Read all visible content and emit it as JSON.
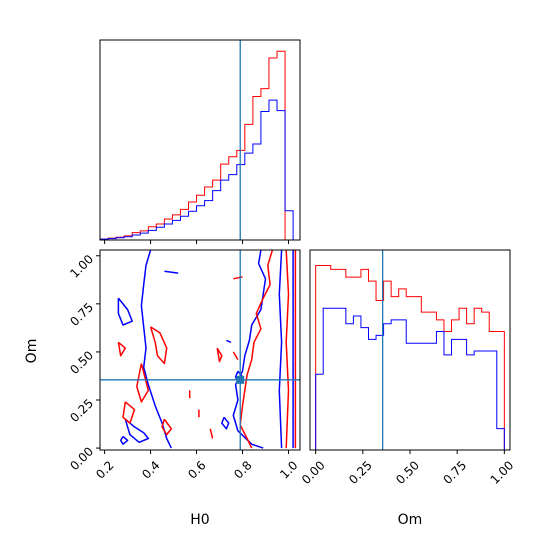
{
  "colors": {
    "blue": "#0000ff",
    "red": "#ff0000",
    "truth": "#1f77b4"
  },
  "chart_data": [
    {
      "type": "histogram",
      "name": "H0 marginal",
      "xlim": [
        0.18,
        1.05
      ],
      "bin_edges": [
        0.18,
        0.215,
        0.25,
        0.285,
        0.32,
        0.355,
        0.39,
        0.425,
        0.46,
        0.495,
        0.53,
        0.565,
        0.6,
        0.635,
        0.67,
        0.705,
        0.74,
        0.775,
        0.81,
        0.845,
        0.88,
        0.915,
        0.95,
        0.985,
        1.02
      ],
      "series": [
        {
          "color": "red",
          "values": [
            0.004,
            0.008,
            0.012,
            0.018,
            0.032,
            0.04,
            0.058,
            0.07,
            0.092,
            0.11,
            0.134,
            0.166,
            0.196,
            0.232,
            0.262,
            0.332,
            0.364,
            0.392,
            0.506,
            0.628,
            0.662,
            0.796,
            0.826,
            0.0
          ]
        },
        {
          "color": "blue",
          "values": [
            0.004,
            0.006,
            0.01,
            0.014,
            0.022,
            0.03,
            0.042,
            0.056,
            0.07,
            0.086,
            0.104,
            0.126,
            0.15,
            0.172,
            0.216,
            0.262,
            0.286,
            0.33,
            0.38,
            0.42,
            0.562,
            0.612,
            0.566,
            0.128
          ]
        }
      ],
      "truth": 0.79
    },
    {
      "type": "contour",
      "name": "H0 vs Om",
      "xlabel": "H0",
      "ylabel": "Om",
      "xlim": [
        0.18,
        1.05
      ],
      "ylim": [
        -0.01,
        1.03
      ],
      "xticks": [
        "0.2",
        "0.4",
        "0.6",
        "0.8",
        "1.0"
      ],
      "yticks": [
        "0.00",
        "0.25",
        "0.50",
        "0.75",
        "1.00"
      ],
      "truth": [
        0.79,
        0.355
      ],
      "contours": [
        {
          "color": "blue",
          "points": [
            [
              0.4,
              1.03
            ],
            [
              0.38,
              0.95
            ],
            [
              0.37,
              0.85
            ],
            [
              0.36,
              0.74
            ],
            [
              0.37,
              0.63
            ],
            [
              0.38,
              0.52
            ],
            [
              0.37,
              0.42
            ],
            [
              0.39,
              0.33
            ],
            [
              0.42,
              0.22
            ],
            [
              0.45,
              0.13
            ],
            [
              0.47,
              0.05
            ],
            [
              0.49,
              0.0
            ]
          ]
        },
        {
          "color": "blue",
          "points": [
            [
              0.88,
              1.03
            ],
            [
              0.87,
              0.96
            ],
            [
              0.9,
              0.88
            ],
            [
              0.89,
              0.8
            ],
            [
              0.88,
              0.72
            ],
            [
              0.84,
              0.64
            ],
            [
              0.83,
              0.56
            ],
            [
              0.81,
              0.48
            ],
            [
              0.8,
              0.4
            ],
            [
              0.77,
              0.33
            ],
            [
              0.78,
              0.25
            ],
            [
              0.76,
              0.17
            ],
            [
              0.78,
              0.09
            ],
            [
              0.84,
              0.02
            ],
            [
              0.89,
              0.0
            ]
          ]
        },
        {
          "color": "blue",
          "points": [
            [
              0.97,
              1.03
            ],
            [
              0.96,
              0.8
            ],
            [
              0.97,
              0.55
            ],
            [
              0.96,
              0.3
            ],
            [
              0.97,
              0.0
            ]
          ]
        },
        {
          "color": "blue",
          "points": [
            [
              1.02,
              1.03
            ],
            [
              1.02,
              0.5
            ],
            [
              1.02,
              0.0
            ]
          ]
        },
        {
          "color": "blue",
          "points": [
            [
              0.26,
              0.78
            ],
            [
              0.3,
              0.72
            ],
            [
              0.32,
              0.66
            ],
            [
              0.28,
              0.64
            ],
            [
              0.26,
              0.7
            ],
            [
              0.26,
              0.78
            ]
          ]
        },
        {
          "color": "blue",
          "points": [
            [
              0.29,
              0.15
            ],
            [
              0.33,
              0.11
            ],
            [
              0.37,
              0.08
            ],
            [
              0.39,
              0.05
            ],
            [
              0.35,
              0.03
            ],
            [
              0.31,
              0.07
            ],
            [
              0.29,
              0.15
            ]
          ]
        },
        {
          "color": "blue",
          "points": [
            [
              0.28,
              0.06
            ],
            [
              0.3,
              0.04
            ],
            [
              0.28,
              0.02
            ],
            [
              0.27,
              0.04
            ],
            [
              0.28,
              0.06
            ]
          ]
        },
        {
          "color": "blue",
          "points": [
            [
              0.46,
              0.92
            ],
            [
              0.52,
              0.91
            ]
          ]
        },
        {
          "color": "blue",
          "points": [
            [
              0.72,
              0.16
            ],
            [
              0.74,
              0.13
            ],
            [
              0.73,
              0.1
            ],
            [
              0.71,
              0.13
            ],
            [
              0.72,
              0.16
            ]
          ]
        },
        {
          "color": "blue",
          "points": [
            [
              0.78,
              0.4
            ],
            [
              0.8,
              0.37
            ],
            [
              0.78,
              0.34
            ],
            [
              0.77,
              0.37
            ],
            [
              0.78,
              0.4
            ]
          ]
        },
        {
          "color": "blue",
          "points": [
            [
              0.73,
              0.56
            ],
            [
              0.75,
              0.55
            ]
          ]
        },
        {
          "color": "red",
          "points": [
            [
              0.93,
              1.03
            ],
            [
              0.91,
              0.95
            ],
            [
              0.92,
              0.85
            ],
            [
              0.89,
              0.78
            ],
            [
              0.86,
              0.7
            ],
            [
              0.88,
              0.62
            ],
            [
              0.85,
              0.55
            ],
            [
              0.84,
              0.46
            ],
            [
              0.82,
              0.38
            ],
            [
              0.81,
              0.3
            ],
            [
              0.8,
              0.22
            ],
            [
              0.79,
              0.12
            ],
            [
              0.82,
              0.05
            ],
            [
              0.84,
              0.0
            ]
          ]
        },
        {
          "color": "red",
          "points": [
            [
              0.99,
              1.03
            ],
            [
              1.0,
              0.8
            ],
            [
              0.99,
              0.55
            ],
            [
              1.0,
              0.3
            ],
            [
              0.99,
              0.0
            ]
          ]
        },
        {
          "color": "red",
          "points": [
            [
              1.03,
              1.03
            ],
            [
              1.03,
              0.0
            ]
          ]
        },
        {
          "color": "red",
          "points": [
            [
              0.4,
              0.63
            ],
            [
              0.42,
              0.55
            ],
            [
              0.43,
              0.48
            ],
            [
              0.46,
              0.44
            ],
            [
              0.47,
              0.52
            ],
            [
              0.44,
              0.6
            ],
            [
              0.4,
              0.63
            ]
          ]
        },
        {
          "color": "red",
          "points": [
            [
              0.36,
              0.44
            ],
            [
              0.39,
              0.3
            ],
            [
              0.36,
              0.24
            ],
            [
              0.34,
              0.32
            ],
            [
              0.36,
              0.44
            ]
          ]
        },
        {
          "color": "red",
          "points": [
            [
              0.29,
              0.24
            ],
            [
              0.33,
              0.2
            ],
            [
              0.31,
              0.13
            ],
            [
              0.28,
              0.16
            ],
            [
              0.29,
              0.24
            ]
          ]
        },
        {
          "color": "red",
          "points": [
            [
              0.26,
              0.55
            ],
            [
              0.29,
              0.52
            ],
            [
              0.27,
              0.48
            ],
            [
              0.26,
              0.55
            ]
          ]
        },
        {
          "color": "red",
          "points": [
            [
              0.46,
              0.15
            ],
            [
              0.49,
              0.1
            ],
            [
              0.47,
              0.07
            ],
            [
              0.45,
              0.11
            ],
            [
              0.46,
              0.15
            ]
          ]
        },
        {
          "color": "red",
          "points": [
            [
              0.76,
              0.88
            ],
            [
              0.8,
              0.89
            ]
          ]
        },
        {
          "color": "red",
          "points": [
            [
              0.66,
              0.1
            ],
            [
              0.67,
              0.05
            ]
          ]
        },
        {
          "color": "red",
          "points": [
            [
              0.69,
              0.52
            ],
            [
              0.71,
              0.48
            ],
            [
              0.7,
              0.45
            ],
            [
              0.69,
              0.52
            ]
          ]
        },
        {
          "color": "red",
          "points": [
            [
              0.61,
              0.2
            ],
            [
              0.61,
              0.16
            ]
          ]
        },
        {
          "color": "red",
          "points": [
            [
              0.57,
              0.3
            ],
            [
              0.57,
              0.26
            ]
          ]
        },
        {
          "color": "red",
          "points": [
            [
              0.76,
              0.5
            ],
            [
              0.78,
              0.46
            ]
          ]
        }
      ]
    },
    {
      "type": "histogram",
      "name": "Om marginal",
      "xlabel": "Om",
      "xlim": [
        -0.03,
        1.03
      ],
      "xticks": [
        "0.00",
        "0.25",
        "0.50",
        "0.75",
        "1.00"
      ],
      "bin_edges": [
        0.0,
        0.04,
        0.08,
        0.12,
        0.16,
        0.2,
        0.24,
        0.28,
        0.32,
        0.36,
        0.4,
        0.44,
        0.48,
        0.52,
        0.56,
        0.6,
        0.64,
        0.68,
        0.72,
        0.76,
        0.8,
        0.84,
        0.88,
        0.92,
        0.96,
        1.0
      ],
      "series": [
        {
          "color": "red",
          "values": [
            0.95,
            0.95,
            0.93,
            0.93,
            0.89,
            0.89,
            0.93,
            0.87,
            0.77,
            0.87,
            0.79,
            0.83,
            0.79,
            0.79,
            0.71,
            0.71,
            0.67,
            0.61,
            0.67,
            0.73,
            0.65,
            0.73,
            0.71,
            0.61,
            0.61
          ]
        },
        {
          "color": "blue",
          "values": [
            0.39,
            0.73,
            0.73,
            0.73,
            0.65,
            0.69,
            0.63,
            0.57,
            0.59,
            0.65,
            0.67,
            0.67,
            0.55,
            0.55,
            0.55,
            0.55,
            0.61,
            0.49,
            0.57,
            0.57,
            0.49,
            0.51,
            0.51,
            0.51,
            0.11
          ]
        }
      ],
      "truth": 0.355
    }
  ]
}
